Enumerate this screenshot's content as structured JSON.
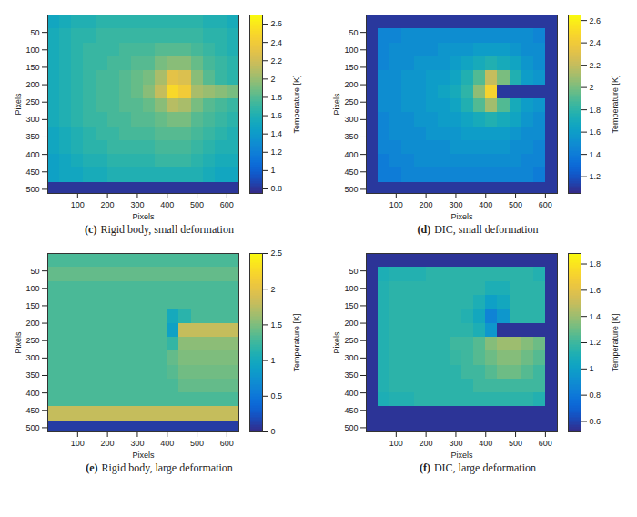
{
  "chart_data": [
    {
      "type": "heatmap",
      "panel_label": "(c)",
      "title": "Rigid body, small deformation",
      "x_label": "Pixels",
      "y_label": "Pixels",
      "xlim": [
        0,
        640
      ],
      "ylim": [
        0,
        512
      ],
      "xticks": [
        100,
        200,
        300,
        400,
        500,
        600
      ],
      "yticks": [
        50,
        100,
        150,
        200,
        250,
        300,
        350,
        400,
        450,
        500
      ],
      "x": [
        20,
        60,
        100,
        140,
        180,
        220,
        260,
        300,
        340,
        380,
        420,
        460,
        500,
        540,
        580,
        620
      ],
      "y": [
        20,
        60,
        100,
        140,
        180,
        220,
        260,
        300,
        340,
        380,
        420,
        460,
        500
      ],
      "cells": [
        [
          1.5,
          1.55,
          1.6,
          1.6,
          1.65,
          1.65,
          1.65,
          1.65,
          1.65,
          1.65,
          1.65,
          1.65,
          1.65,
          1.6,
          1.6,
          1.55
        ],
        [
          1.55,
          1.6,
          1.65,
          1.65,
          1.7,
          1.7,
          1.7,
          1.7,
          1.7,
          1.7,
          1.7,
          1.7,
          1.7,
          1.65,
          1.65,
          1.6
        ],
        [
          1.55,
          1.6,
          1.65,
          1.7,
          1.7,
          1.7,
          1.75,
          1.75,
          1.75,
          1.8,
          1.8,
          1.8,
          1.75,
          1.7,
          1.65,
          1.6
        ],
        [
          1.55,
          1.6,
          1.65,
          1.7,
          1.7,
          1.75,
          1.75,
          1.8,
          1.8,
          1.9,
          1.95,
          1.95,
          1.85,
          1.75,
          1.7,
          1.65
        ],
        [
          1.55,
          1.6,
          1.65,
          1.7,
          1.75,
          1.75,
          1.8,
          1.85,
          1.9,
          2.05,
          2.3,
          2.25,
          1.95,
          1.8,
          1.7,
          1.65
        ],
        [
          1.55,
          1.6,
          1.65,
          1.7,
          1.75,
          1.75,
          1.8,
          1.85,
          1.95,
          2.15,
          2.5,
          2.4,
          2.05,
          2.0,
          1.95,
          1.9
        ],
        [
          1.55,
          1.6,
          1.65,
          1.7,
          1.75,
          1.75,
          1.8,
          1.8,
          1.85,
          1.95,
          2.1,
          2.05,
          1.9,
          1.8,
          1.75,
          1.7
        ],
        [
          1.55,
          1.6,
          1.65,
          1.7,
          1.7,
          1.75,
          1.75,
          1.8,
          1.8,
          1.85,
          1.9,
          1.9,
          1.8,
          1.75,
          1.7,
          1.65
        ],
        [
          1.5,
          1.55,
          1.6,
          1.65,
          1.7,
          1.7,
          1.75,
          1.75,
          1.75,
          1.8,
          1.8,
          1.8,
          1.75,
          1.7,
          1.65,
          1.6
        ],
        [
          1.5,
          1.55,
          1.6,
          1.65,
          1.65,
          1.7,
          1.7,
          1.7,
          1.7,
          1.75,
          1.75,
          1.75,
          1.7,
          1.65,
          1.6,
          1.6
        ],
        [
          1.45,
          1.5,
          1.55,
          1.6,
          1.6,
          1.65,
          1.65,
          1.65,
          1.65,
          1.7,
          1.7,
          1.7,
          1.65,
          1.6,
          1.55,
          1.55
        ],
        [
          1.45,
          1.5,
          1.5,
          1.55,
          1.55,
          1.6,
          1.6,
          1.6,
          1.6,
          1.6,
          1.6,
          1.6,
          1.6,
          1.55,
          1.5,
          1.5
        ],
        [
          0.8,
          0.8,
          0.8,
          0.8,
          0.8,
          0.8,
          0.8,
          0.8,
          0.8,
          0.8,
          0.8,
          0.8,
          0.8,
          0.8,
          0.8,
          0.8
        ]
      ],
      "colorbar": {
        "label": "Temperature [K]",
        "range": [
          0.75,
          2.7
        ],
        "ticks": [
          0.8,
          1,
          1.2,
          1.4,
          1.6,
          1.8,
          2,
          2.2,
          2.4,
          2.6
        ]
      }
    },
    {
      "type": "heatmap",
      "panel_label": "(d)",
      "title": "DIC, small deformation",
      "x_label": "Pixels",
      "y_label": "Pixels",
      "xlim": [
        0,
        640
      ],
      "ylim": [
        0,
        512
      ],
      "xticks": [
        100,
        200,
        300,
        400,
        500,
        600
      ],
      "yticks": [
        50,
        100,
        150,
        200,
        250,
        300,
        350,
        400,
        450,
        500
      ],
      "x": [
        20,
        60,
        100,
        140,
        180,
        220,
        260,
        300,
        340,
        380,
        420,
        460,
        500,
        540,
        580,
        620
      ],
      "y": [
        20,
        60,
        100,
        140,
        180,
        220,
        260,
        300,
        340,
        380,
        420,
        460,
        500
      ],
      "cells": [
        [
          1.1,
          1.1,
          1.1,
          1.1,
          1.1,
          1.1,
          1.1,
          1.1,
          1.1,
          1.1,
          1.1,
          1.1,
          1.1,
          1.1,
          1.1,
          1.1
        ],
        [
          1.1,
          1.45,
          1.45,
          1.5,
          1.5,
          1.5,
          1.5,
          1.5,
          1.5,
          1.5,
          1.5,
          1.5,
          1.5,
          1.5,
          1.45,
          1.1
        ],
        [
          1.1,
          1.45,
          1.5,
          1.5,
          1.5,
          1.5,
          1.55,
          1.55,
          1.55,
          1.6,
          1.6,
          1.6,
          1.55,
          1.5,
          1.5,
          1.1
        ],
        [
          1.1,
          1.45,
          1.5,
          1.5,
          1.55,
          1.55,
          1.55,
          1.6,
          1.65,
          1.7,
          1.75,
          1.7,
          1.65,
          1.55,
          1.5,
          1.1
        ],
        [
          1.1,
          1.5,
          1.5,
          1.55,
          1.55,
          1.6,
          1.6,
          1.65,
          1.75,
          1.9,
          2.2,
          2.0,
          1.75,
          1.6,
          1.55,
          1.1
        ],
        [
          1.1,
          1.5,
          1.5,
          1.55,
          1.55,
          1.6,
          1.65,
          1.7,
          1.8,
          2.05,
          2.45,
          1.1,
          1.1,
          1.1,
          1.1,
          1.1
        ],
        [
          1.1,
          1.5,
          1.5,
          1.55,
          1.55,
          1.6,
          1.6,
          1.65,
          1.75,
          1.9,
          2.1,
          1.9,
          1.7,
          1.6,
          1.55,
          1.1
        ],
        [
          1.1,
          1.45,
          1.5,
          1.5,
          1.55,
          1.55,
          1.6,
          1.6,
          1.65,
          1.7,
          1.75,
          1.7,
          1.65,
          1.55,
          1.5,
          1.1
        ],
        [
          1.1,
          1.45,
          1.5,
          1.5,
          1.5,
          1.55,
          1.55,
          1.55,
          1.6,
          1.6,
          1.6,
          1.6,
          1.55,
          1.5,
          1.5,
          1.1
        ],
        [
          1.1,
          1.45,
          1.45,
          1.5,
          1.5,
          1.5,
          1.5,
          1.55,
          1.55,
          1.55,
          1.55,
          1.55,
          1.5,
          1.5,
          1.45,
          1.1
        ],
        [
          1.1,
          1.4,
          1.45,
          1.45,
          1.5,
          1.5,
          1.5,
          1.5,
          1.5,
          1.5,
          1.5,
          1.5,
          1.5,
          1.45,
          1.45,
          1.1
        ],
        [
          1.1,
          1.4,
          1.4,
          1.45,
          1.45,
          1.45,
          1.45,
          1.45,
          1.45,
          1.45,
          1.45,
          1.45,
          1.45,
          1.45,
          1.4,
          1.1
        ],
        [
          1.1,
          1.1,
          1.1,
          1.1,
          1.1,
          1.1,
          1.1,
          1.1,
          1.1,
          1.1,
          1.1,
          1.1,
          1.1,
          1.1,
          1.1,
          1.1
        ]
      ],
      "colorbar": {
        "label": "Temperature [K]",
        "range": [
          1.05,
          2.65
        ],
        "ticks": [
          1.2,
          1.4,
          1.6,
          1.8,
          2,
          2.2,
          2.4,
          2.6
        ]
      }
    },
    {
      "type": "heatmap",
      "panel_label": "(e)",
      "title": "Rigid body, large deformation",
      "x_label": "Pixels",
      "y_label": "Pixels",
      "xlim": [
        0,
        640
      ],
      "ylim": [
        0,
        512
      ],
      "xticks": [
        100,
        200,
        300,
        400,
        500,
        600
      ],
      "yticks": [
        50,
        100,
        150,
        200,
        250,
        300,
        350,
        400,
        450,
        500
      ],
      "x": [
        20,
        60,
        100,
        140,
        180,
        220,
        260,
        300,
        340,
        380,
        420,
        460,
        500,
        540,
        580,
        620
      ],
      "y": [
        20,
        60,
        100,
        140,
        180,
        220,
        260,
        300,
        340,
        380,
        420,
        460,
        500
      ],
      "cells": [
        [
          1.3,
          1.3,
          1.3,
          1.3,
          1.3,
          1.3,
          1.3,
          1.3,
          1.3,
          1.3,
          1.3,
          1.3,
          1.3,
          1.3,
          1.3,
          1.3
        ],
        [
          1.4,
          1.4,
          1.4,
          1.4,
          1.4,
          1.4,
          1.4,
          1.4,
          1.4,
          1.4,
          1.4,
          1.4,
          1.4,
          1.4,
          1.4,
          1.4
        ],
        [
          1.3,
          1.3,
          1.3,
          1.3,
          1.3,
          1.3,
          1.3,
          1.3,
          1.3,
          1.3,
          1.3,
          1.3,
          1.3,
          1.3,
          1.3,
          1.3
        ],
        [
          1.3,
          1.3,
          1.3,
          1.3,
          1.3,
          1.3,
          1.3,
          1.3,
          1.3,
          1.3,
          1.3,
          1.3,
          1.3,
          1.3,
          1.3,
          1.3
        ],
        [
          1.3,
          1.3,
          1.3,
          1.3,
          1.3,
          1.3,
          1.3,
          1.3,
          1.3,
          1.3,
          1.0,
          1.15,
          1.3,
          1.3,
          1.3,
          1.3
        ],
        [
          1.3,
          1.3,
          1.3,
          1.3,
          1.3,
          1.3,
          1.3,
          1.3,
          1.3,
          1.3,
          0.9,
          1.8,
          1.8,
          1.8,
          1.8,
          1.8
        ],
        [
          1.3,
          1.3,
          1.3,
          1.3,
          1.3,
          1.3,
          1.3,
          1.3,
          1.3,
          1.3,
          1.2,
          1.55,
          1.55,
          1.55,
          1.55,
          1.55
        ],
        [
          1.3,
          1.3,
          1.3,
          1.3,
          1.3,
          1.3,
          1.3,
          1.3,
          1.3,
          1.3,
          1.4,
          1.5,
          1.5,
          1.5,
          1.5,
          1.5
        ],
        [
          1.3,
          1.3,
          1.3,
          1.3,
          1.3,
          1.3,
          1.3,
          1.3,
          1.3,
          1.3,
          1.35,
          1.45,
          1.45,
          1.45,
          1.45,
          1.45
        ],
        [
          1.3,
          1.3,
          1.3,
          1.3,
          1.3,
          1.3,
          1.3,
          1.3,
          1.3,
          1.3,
          1.3,
          1.4,
          1.4,
          1.4,
          1.4,
          1.4
        ],
        [
          1.3,
          1.3,
          1.3,
          1.3,
          1.3,
          1.3,
          1.3,
          1.3,
          1.3,
          1.3,
          1.3,
          1.3,
          1.3,
          1.3,
          1.3,
          1.3
        ],
        [
          1.8,
          1.8,
          1.8,
          1.8,
          1.8,
          1.8,
          1.8,
          1.8,
          1.8,
          1.8,
          1.8,
          1.8,
          1.8,
          1.8,
          1.8,
          1.8
        ],
        [
          0.1,
          0.1,
          0.1,
          0.1,
          0.1,
          0.1,
          0.1,
          0.1,
          0.1,
          0.1,
          0.1,
          0.1,
          0.1,
          0.1,
          0.1,
          0.1
        ]
      ],
      "colorbar": {
        "label": "Temperature [K]",
        "range": [
          0,
          2.5
        ],
        "ticks": [
          0,
          0.5,
          1,
          1.5,
          2,
          2.5
        ]
      }
    },
    {
      "type": "heatmap",
      "panel_label": "(f)",
      "title": "DIC, large deformation",
      "x_label": "Pixels",
      "y_label": "Pixels",
      "xlim": [
        0,
        640
      ],
      "ylim": [
        0,
        512
      ],
      "xticks": [
        100,
        200,
        300,
        400,
        500,
        600
      ],
      "yticks": [
        50,
        100,
        150,
        200,
        250,
        300,
        350,
        400,
        450,
        500
      ],
      "x": [
        20,
        60,
        100,
        140,
        180,
        220,
        260,
        300,
        340,
        380,
        420,
        460,
        500,
        540,
        580,
        620
      ],
      "y": [
        20,
        60,
        100,
        140,
        180,
        220,
        260,
        300,
        340,
        380,
        420,
        460,
        500
      ],
      "cells": [
        [
          0.55,
          0.55,
          0.55,
          0.55,
          0.55,
          0.55,
          0.55,
          0.55,
          0.55,
          0.55,
          0.55,
          0.55,
          0.55,
          0.55,
          0.55,
          0.55
        ],
        [
          0.55,
          1.1,
          1.12,
          1.12,
          1.12,
          1.15,
          1.15,
          1.15,
          1.15,
          1.15,
          1.15,
          1.15,
          1.15,
          1.15,
          1.12,
          0.55
        ],
        [
          0.55,
          1.12,
          1.15,
          1.15,
          1.15,
          1.15,
          1.15,
          1.15,
          1.15,
          1.15,
          1.1,
          1.1,
          1.15,
          1.15,
          1.15,
          0.55
        ],
        [
          0.55,
          1.12,
          1.15,
          1.15,
          1.15,
          1.15,
          1.15,
          1.15,
          1.15,
          1.1,
          1.0,
          1.05,
          1.15,
          1.15,
          1.15,
          0.55
        ],
        [
          0.55,
          1.12,
          1.15,
          1.15,
          1.15,
          1.15,
          1.15,
          1.15,
          1.12,
          1.05,
          0.85,
          0.95,
          1.15,
          1.15,
          1.15,
          0.55
        ],
        [
          0.55,
          1.12,
          1.15,
          1.15,
          1.15,
          1.15,
          1.15,
          1.15,
          1.15,
          1.1,
          0.95,
          0.55,
          0.55,
          0.55,
          0.55,
          0.55
        ],
        [
          0.55,
          1.12,
          1.15,
          1.15,
          1.15,
          1.15,
          1.15,
          1.2,
          1.2,
          1.25,
          1.35,
          1.4,
          1.4,
          1.35,
          1.3,
          0.55
        ],
        [
          0.55,
          1.12,
          1.15,
          1.15,
          1.15,
          1.15,
          1.15,
          1.18,
          1.2,
          1.25,
          1.3,
          1.35,
          1.35,
          1.3,
          1.25,
          0.55
        ],
        [
          0.55,
          1.12,
          1.15,
          1.15,
          1.15,
          1.15,
          1.15,
          1.15,
          1.2,
          1.2,
          1.25,
          1.3,
          1.3,
          1.25,
          1.2,
          0.55
        ],
        [
          0.55,
          1.12,
          1.15,
          1.15,
          1.15,
          1.15,
          1.15,
          1.15,
          1.15,
          1.2,
          1.2,
          1.2,
          1.2,
          1.2,
          1.2,
          0.55
        ],
        [
          0.55,
          1.1,
          1.12,
          1.12,
          1.15,
          1.15,
          1.15,
          1.15,
          1.15,
          1.15,
          1.15,
          1.15,
          1.15,
          1.15,
          1.12,
          0.55
        ],
        [
          0.55,
          0.55,
          0.55,
          0.55,
          0.55,
          0.55,
          0.55,
          0.55,
          0.55,
          0.55,
          0.55,
          0.55,
          0.55,
          0.55,
          0.55,
          0.55
        ],
        [
          0.55,
          0.55,
          0.55,
          0.55,
          0.55,
          0.55,
          0.55,
          0.55,
          0.55,
          0.55,
          0.55,
          0.55,
          0.55,
          0.55,
          0.55,
          0.55
        ]
      ],
      "colorbar": {
        "label": "Temperature [K]",
        "range": [
          0.52,
          1.88
        ],
        "ticks": [
          0.6,
          0.8,
          1,
          1.2,
          1.4,
          1.6,
          1.8
        ]
      }
    }
  ]
}
